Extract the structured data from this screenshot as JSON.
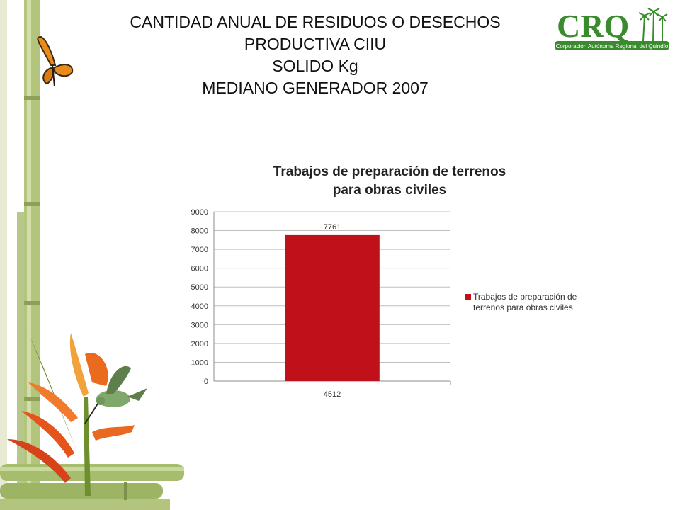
{
  "slide": {
    "title_lines": [
      "CANTIDAD ANUAL DE RESIDUOS O DESECHOS",
      "PRODUCTIVA CIIU",
      "SOLIDO Kg",
      "MEDIANO GENERADOR 2007"
    ]
  },
  "logo": {
    "text": "CRQ",
    "subtitle": "Corporación Autónoma Regional del Quindío",
    "color": "#3A8A2E"
  },
  "decoration": {
    "icons": [
      "bamboo-stalks",
      "butterfly-icon",
      "hummingbird-icon",
      "heliconia-flower"
    ]
  },
  "chart_data": {
    "type": "bar",
    "title": "Trabajos de preparación de terrenos para obras civiles",
    "title_lines": [
      "Trabajos de preparación de terrenos",
      "para obras civiles"
    ],
    "categories": [
      "4512"
    ],
    "series": [
      {
        "name": "Trabajos de preparación de terrenos para obras civiles",
        "legend_lines": [
          "Trabajos de preparación de",
          "terrenos para obras civiles"
        ],
        "values": [
          7761
        ],
        "color": "#C0101A"
      }
    ],
    "data_labels": [
      "7761"
    ],
    "yticks": [
      "0",
      "1000",
      "2000",
      "3000",
      "4000",
      "5000",
      "6000",
      "7000",
      "8000",
      "9000"
    ],
    "ylim": [
      0,
      9000
    ],
    "grid": true,
    "legend_position": "right"
  }
}
